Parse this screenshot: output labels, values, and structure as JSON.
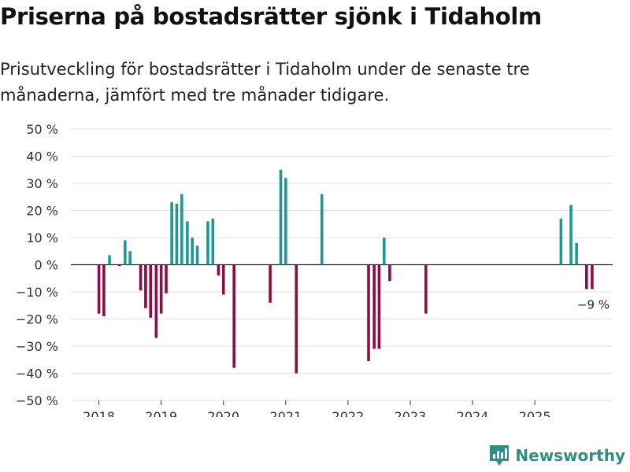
{
  "title": "Priserna på bostadsrätter sjönk i Tidaholm",
  "subtitle": "Prisutveckling för bostadsrätter i Tidaholm under de senaste tre månaderna, jämfört med tre månader tidigare.",
  "brand": "Newsworthy",
  "colors": {
    "positive": "#1a9a94",
    "negative": "#8c0e45",
    "brand": "#2e8f86"
  },
  "chart_data": {
    "type": "bar",
    "title": "Priserna på bostadsrätter sjönk i Tidaholm",
    "xlabel": "",
    "ylabel": "",
    "ylim": [
      -50,
      50
    ],
    "ytick_values": [
      50,
      40,
      30,
      20,
      10,
      0,
      -10,
      -20,
      -30,
      -40,
      -50
    ],
    "ytick_labels": [
      "50 %",
      "40 %",
      "30 %",
      "20 %",
      "10 %",
      "0 %",
      "−10 %",
      "−20 %",
      "−30 %",
      "−40 %",
      "−50 %"
    ],
    "xtick_values": [
      2018,
      2019,
      2020,
      2021,
      2022,
      2023,
      2024,
      2025
    ],
    "xtick_labels": [
      "2018",
      "2019",
      "2020",
      "2021",
      "2022",
      "2023",
      "2024",
      "2025"
    ],
    "xlim": [
      2017.55,
      2026.25
    ],
    "x": [
      2018.0,
      2018.08,
      2018.17,
      2018.33,
      2018.42,
      2018.5,
      2018.67,
      2018.75,
      2018.83,
      2018.92,
      2019.0,
      2019.08,
      2019.17,
      2019.25,
      2019.33,
      2019.42,
      2019.5,
      2019.58,
      2019.75,
      2019.83,
      2019.92,
      2020.0,
      2020.17,
      2020.75,
      2020.92,
      2021.0,
      2021.17,
      2021.58,
      2022.33,
      2022.42,
      2022.5,
      2022.58,
      2022.67,
      2023.25,
      2025.42,
      2025.58,
      2025.67,
      2025.83,
      2025.92
    ],
    "values": [
      -18,
      -19,
      3.5,
      -0.5,
      9,
      5,
      -9.5,
      -16,
      -19.5,
      -27,
      -18,
      -10.5,
      23,
      22.5,
      26,
      16,
      10,
      7,
      16,
      17,
      -4,
      -11,
      -38,
      -14,
      35,
      32,
      -40,
      26,
      -35.5,
      -31,
      -31,
      10,
      -6,
      -18,
      17,
      22,
      8,
      -9,
      -9
    ],
    "annotation": {
      "x": 2025.92,
      "value": -9,
      "text": "−9 %"
    }
  }
}
